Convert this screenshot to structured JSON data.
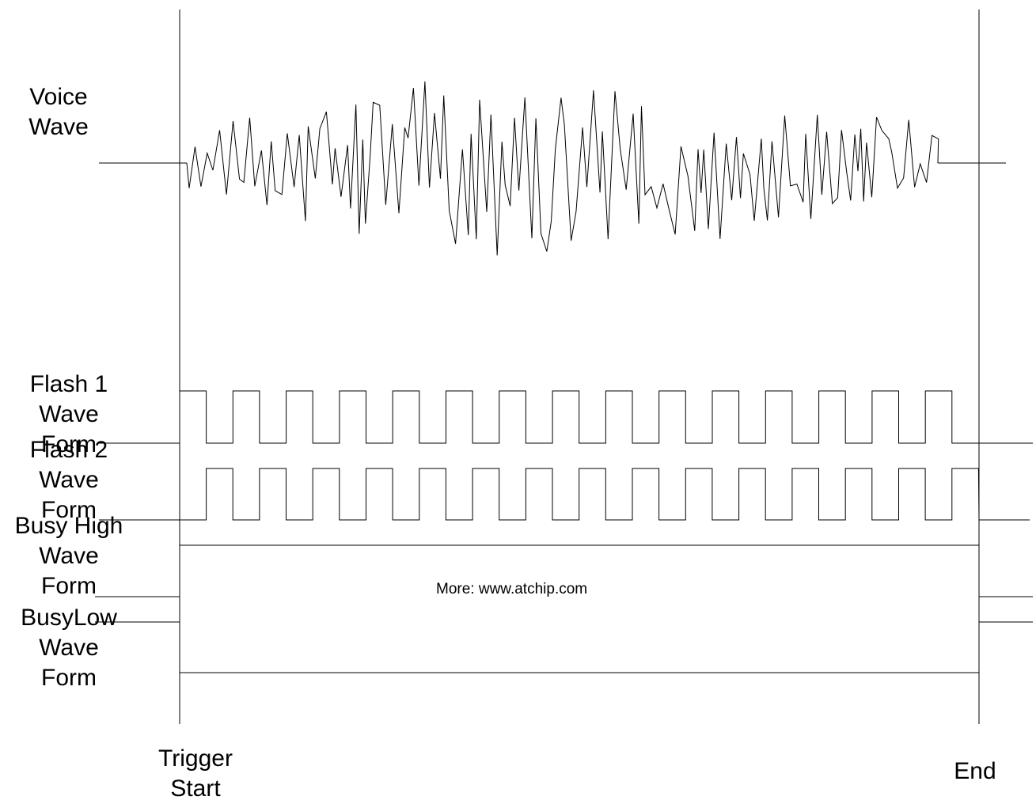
{
  "labels": {
    "voice": [
      "Voice",
      "Wave"
    ],
    "flash1": [
      "Flash 1",
      "Wave",
      "Form"
    ],
    "flash2": [
      "Flash 2",
      "Wave",
      "Form"
    ],
    "busy_high": [
      "Busy High",
      "Wave",
      "Form"
    ],
    "busy_low": [
      "BusyLow",
      "Wave",
      "Form"
    ],
    "trigger": [
      "Trigger",
      "Start"
    ],
    "end": "End"
  },
  "note": "More: www.atchip.com",
  "colors": {
    "line": "#000000",
    "background": "#ffffff"
  },
  "flash_pulse_count": 15
}
